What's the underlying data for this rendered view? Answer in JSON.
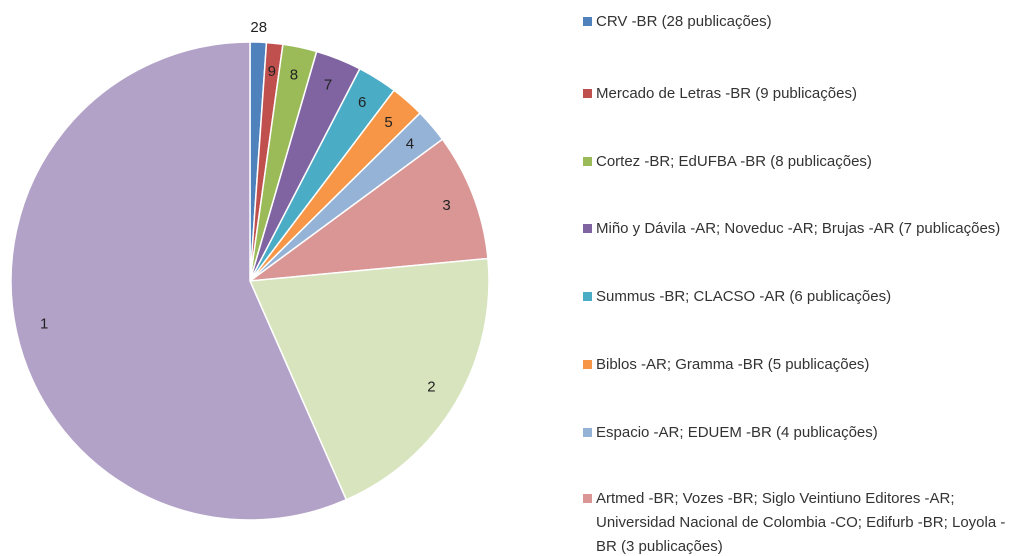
{
  "chart_data": {
    "type": "pie",
    "categories": [
      "28",
      "9",
      "8",
      "7",
      "6",
      "5",
      "4",
      "3",
      "2",
      "1"
    ],
    "values": [
      1.1,
      1.1,
      2.3,
      3.1,
      2.7,
      2.3,
      2.3,
      8.6,
      19.9,
      56.6
    ],
    "colors": [
      "#4f81bd",
      "#c0504d",
      "#9bbb59",
      "#8064a2",
      "#4bacc6",
      "#f79646",
      "#95b3d7",
      "#d99694",
      "#d7e4bd",
      "#b3a2c7"
    ],
    "legend": [
      "CRV -BR (28 publicações)",
      "Mercado de Letras -BR (9 publicações)",
      "Cortez -BR; EdUFBA -BR (8 publicações)",
      "Miño y Dávila -AR; Noveduc -AR; Brujas -AR (7 publicações)",
      "Summus -BR; CLACSO -AR (6 publicações)",
      "Biblos -AR; Gramma -BR (5 publicações)",
      "Espacio -AR; EDUEM -BR (4 publicações)",
      "Artmed -BR; Vozes -BR; Siglo Veintiuno Editores -AR; Universidad Nacional de Colombia -CO; Edifurb -BR; Loyola -BR (3 publicações)"
    ],
    "legend_position": "right"
  }
}
